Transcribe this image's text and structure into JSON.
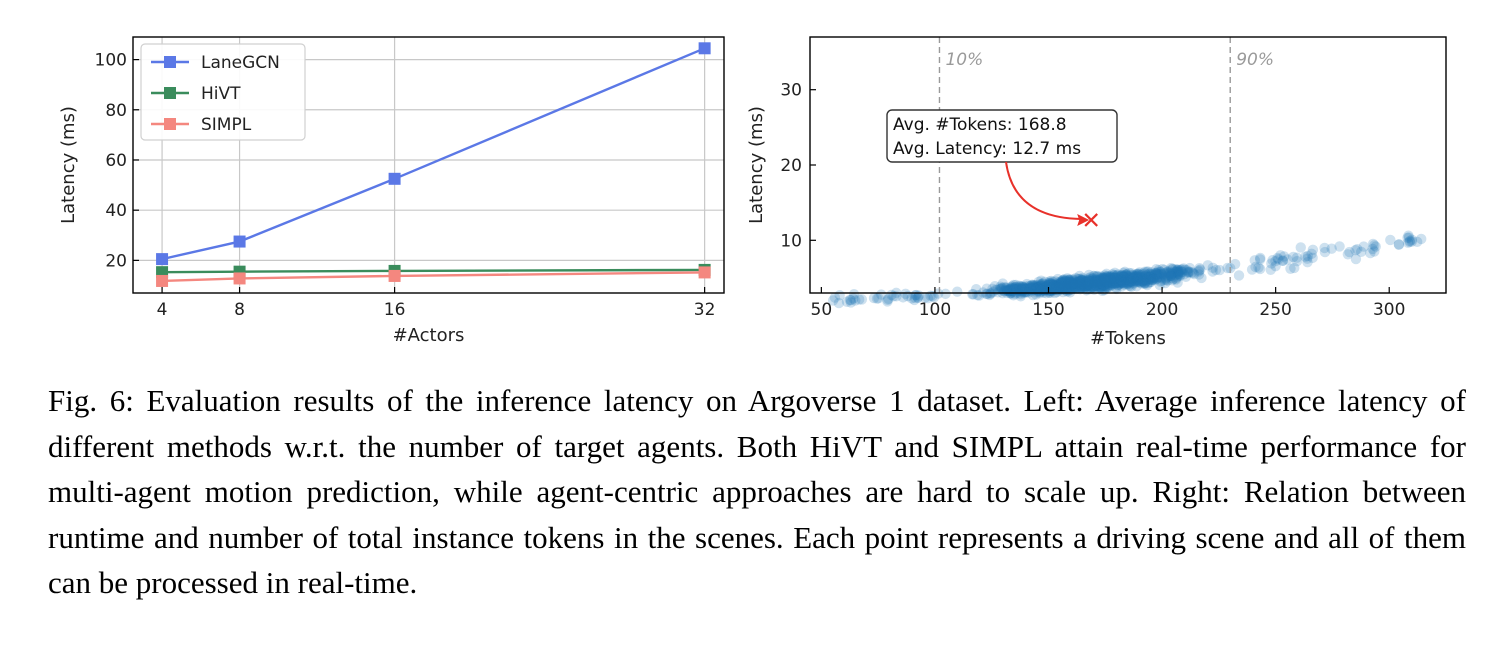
{
  "chart_data": [
    {
      "type": "line",
      "title": "",
      "xlabel": "#Actors",
      "ylabel": "Latency (ms)",
      "x": [
        4,
        8,
        16,
        32
      ],
      "xticks": [
        4,
        8,
        16,
        32
      ],
      "xlim": [
        2.5,
        33
      ],
      "yticks": [
        20,
        40,
        60,
        80,
        100
      ],
      "ylim": [
        7,
        109
      ],
      "grid": true,
      "legend_position": "top-left",
      "series": [
        {
          "name": "LaneGCN",
          "color": "#5b78e6",
          "values": [
            20.5,
            27.5,
            52.5,
            104.5
          ]
        },
        {
          "name": "HiVT",
          "color": "#3a8c5c",
          "values": [
            15.3,
            15.5,
            15.8,
            16.2
          ]
        },
        {
          "name": "SIMPL",
          "color": "#f4877f",
          "values": [
            11.8,
            12.8,
            13.8,
            15.2
          ]
        }
      ]
    },
    {
      "type": "scatter",
      "title": "",
      "xlabel": "#Tokens",
      "ylabel": "Latency (ms)",
      "xticks": [
        50,
        100,
        150,
        200,
        250,
        300
      ],
      "xlim": [
        45,
        325
      ],
      "yticks": [
        10,
        20,
        30
      ],
      "ylim": [
        3,
        37
      ],
      "grid": false,
      "point_color": "#1f77b4",
      "trend": {
        "x_min": 55,
        "x_max": 315,
        "a": 1.66,
        "b": 0.00233,
        "c": 7.93e-05
      },
      "vlines": [
        {
          "x": 102,
          "label": "10%"
        },
        {
          "x": 230,
          "label": "90%"
        }
      ],
      "annotation": {
        "lines": [
          "Avg. #Tokens: 168.8",
          "Avg. Latency: 12.7 ms"
        ],
        "point": {
          "x": 168.8,
          "y": 12.7
        }
      }
    }
  ],
  "caption": "Fig. 6: Evaluation results of the inference latency on Argoverse 1 dataset. Left: Average inference latency of different methods w.r.t. the number of target agents. Both HiVT and SIMPL attain real-time performance for multi-agent motion prediction, while agent-centric approaches are hard to scale up. Right: Relation between runtime and number of total instance tokens in the scenes. Each point represents a driving scene and all of them can be processed in real-time."
}
